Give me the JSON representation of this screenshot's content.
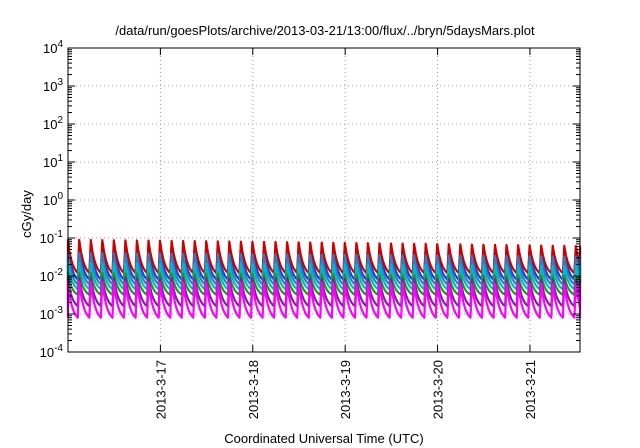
{
  "chart_data": {
    "type": "line",
    "title": "/data/run/goesPlots/archive/2013-03-21/13:00/flux/../bryn/5daysMars.plot",
    "xlabel": "Coordinated Universal Time (UTC)",
    "ylabel": "cGy/day",
    "y_scale": "log",
    "ylim": [
      0.0001,
      10000
    ],
    "y_ticks": [
      {
        "value": 0.0001,
        "base": "10",
        "exp": "-4"
      },
      {
        "value": 0.001,
        "base": "10",
        "exp": "-3"
      },
      {
        "value": 0.01,
        "base": "10",
        "exp": "-2"
      },
      {
        "value": 0.1,
        "base": "10",
        "exp": "-1"
      },
      {
        "value": 1,
        "base": "10",
        "exp": "0"
      },
      {
        "value": 10,
        "base": "10",
        "exp": "1"
      },
      {
        "value": 100,
        "base": "10",
        "exp": "2"
      },
      {
        "value": 1000,
        "base": "10",
        "exp": "3"
      },
      {
        "value": 10000,
        "base": "10",
        "exp": "4"
      }
    ],
    "xlim": [
      "2013-03-16 00:00",
      "2013-03-21 13:00"
    ],
    "x_ticks": [
      "2013-3-17",
      "2013-3-18",
      "2013-3-19",
      "2013-3-20",
      "2013-3-21"
    ],
    "grid": true,
    "legend": "none",
    "pattern": "sawtooth",
    "pattern_period_hours": 3,
    "series": [
      {
        "color": "#1f3fd0",
        "peak_start": 0.065,
        "peak_end": 0.05,
        "trough": 0.008
      },
      {
        "color": "#cc0000",
        "peak_start": 0.09,
        "peak_end": 0.06,
        "trough": 0.012
      },
      {
        "color": "#2f7fc0",
        "peak_start": 0.04,
        "peak_end": 0.032,
        "trough": 0.006
      },
      {
        "color": "#00b8c8",
        "peak_start": 0.022,
        "peak_end": 0.018,
        "trough": 0.0045
      },
      {
        "color": "#1a9a1a",
        "peak_start": 0.012,
        "peak_end": 0.01,
        "trough": 0.0032
      },
      {
        "color": "#8020a0",
        "peak_start": 0.009,
        "peak_end": 0.008,
        "trough": 0.0016
      },
      {
        "color": "#ff00ff",
        "peak_start": 0.007,
        "peak_end": 0.006,
        "trough": 0.0008
      }
    ]
  }
}
